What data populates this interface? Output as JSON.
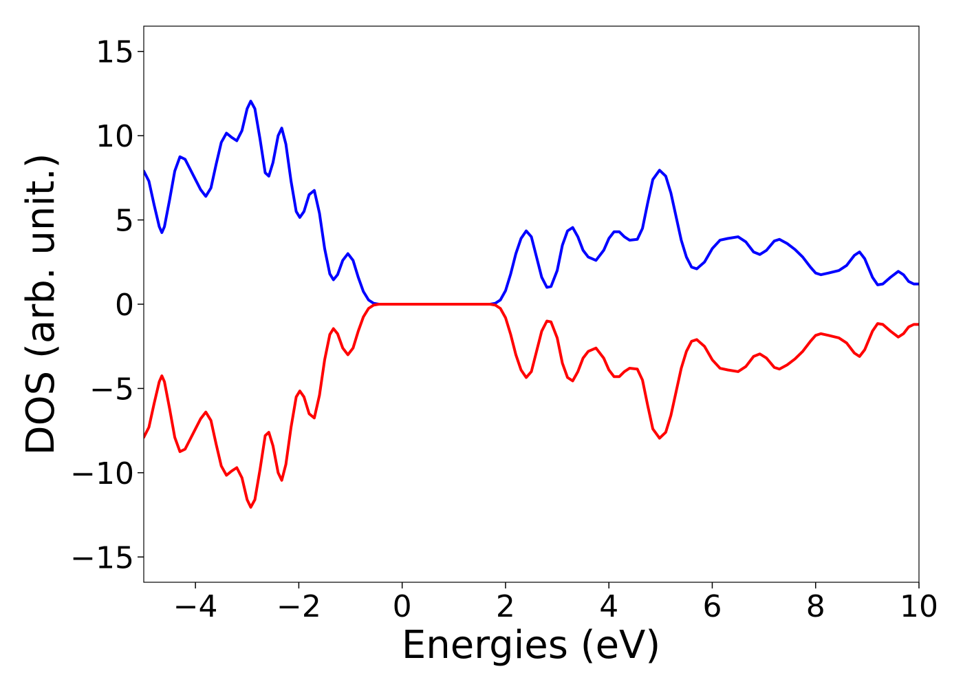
{
  "chart_data": {
    "type": "line",
    "title": "",
    "xlabel": "Energies (eV)",
    "ylabel": "DOS (arb. unit.)",
    "xlim": [
      -5,
      10
    ],
    "ylim": [
      -16.5,
      16.5
    ],
    "grid": false,
    "legend": "none",
    "x_ticks": [
      {
        "value": -4,
        "label": "−4"
      },
      {
        "value": -2,
        "label": "−2"
      },
      {
        "value": 0,
        "label": "0"
      },
      {
        "value": 2,
        "label": "2"
      },
      {
        "value": 4,
        "label": "4"
      },
      {
        "value": 6,
        "label": "6"
      },
      {
        "value": 8,
        "label": "8"
      },
      {
        "value": 10,
        "label": "10"
      }
    ],
    "y_ticks": [
      {
        "value": 15,
        "label": "15"
      },
      {
        "value": 10,
        "label": "10"
      },
      {
        "value": 5,
        "label": "5"
      },
      {
        "value": 0,
        "label": "0"
      },
      {
        "value": -5,
        "label": "−5"
      },
      {
        "value": -10,
        "label": "−10"
      },
      {
        "value": -15,
        "label": "−15"
      }
    ],
    "series": [
      {
        "color": "#0000ff",
        "points": [
          [
            -5.0,
            7.9
          ],
          [
            -4.9,
            7.3
          ],
          [
            -4.8,
            5.9
          ],
          [
            -4.7,
            4.6
          ],
          [
            -4.65,
            4.25
          ],
          [
            -4.6,
            4.6
          ],
          [
            -4.5,
            6.2
          ],
          [
            -4.4,
            7.9
          ],
          [
            -4.3,
            8.75
          ],
          [
            -4.2,
            8.6
          ],
          [
            -4.1,
            8.0
          ],
          [
            -4.0,
            7.4
          ],
          [
            -3.9,
            6.8
          ],
          [
            -3.8,
            6.4
          ],
          [
            -3.7,
            6.9
          ],
          [
            -3.6,
            8.3
          ],
          [
            -3.5,
            9.6
          ],
          [
            -3.4,
            10.15
          ],
          [
            -3.3,
            9.9
          ],
          [
            -3.2,
            9.7
          ],
          [
            -3.1,
            10.3
          ],
          [
            -3.0,
            11.6
          ],
          [
            -2.93,
            12.05
          ],
          [
            -2.85,
            11.6
          ],
          [
            -2.75,
            9.8
          ],
          [
            -2.65,
            7.8
          ],
          [
            -2.58,
            7.6
          ],
          [
            -2.5,
            8.4
          ],
          [
            -2.4,
            10.0
          ],
          [
            -2.33,
            10.45
          ],
          [
            -2.25,
            9.5
          ],
          [
            -2.15,
            7.3
          ],
          [
            -2.05,
            5.5
          ],
          [
            -1.98,
            5.15
          ],
          [
            -1.9,
            5.5
          ],
          [
            -1.8,
            6.5
          ],
          [
            -1.7,
            6.75
          ],
          [
            -1.6,
            5.4
          ],
          [
            -1.5,
            3.3
          ],
          [
            -1.4,
            1.8
          ],
          [
            -1.33,
            1.45
          ],
          [
            -1.25,
            1.75
          ],
          [
            -1.15,
            2.6
          ],
          [
            -1.05,
            3.0
          ],
          [
            -0.95,
            2.6
          ],
          [
            -0.85,
            1.6
          ],
          [
            -0.75,
            0.75
          ],
          [
            -0.65,
            0.25
          ],
          [
            -0.55,
            0.05
          ],
          [
            -0.45,
            0.0
          ],
          [
            0.0,
            0.0
          ],
          [
            1.0,
            0.0
          ],
          [
            1.7,
            0.0
          ],
          [
            1.8,
            0.05
          ],
          [
            1.9,
            0.25
          ],
          [
            2.0,
            0.8
          ],
          [
            2.1,
            1.8
          ],
          [
            2.2,
            3.0
          ],
          [
            2.3,
            3.9
          ],
          [
            2.4,
            4.35
          ],
          [
            2.5,
            4.0
          ],
          [
            2.6,
            2.8
          ],
          [
            2.7,
            1.6
          ],
          [
            2.8,
            1.0
          ],
          [
            2.88,
            1.05
          ],
          [
            3.0,
            2.0
          ],
          [
            3.1,
            3.5
          ],
          [
            3.2,
            4.35
          ],
          [
            3.3,
            4.55
          ],
          [
            3.4,
            4.0
          ],
          [
            3.5,
            3.2
          ],
          [
            3.6,
            2.8
          ],
          [
            3.75,
            2.6
          ],
          [
            3.9,
            3.2
          ],
          [
            4.0,
            3.9
          ],
          [
            4.1,
            4.3
          ],
          [
            4.2,
            4.3
          ],
          [
            4.3,
            4.0
          ],
          [
            4.4,
            3.8
          ],
          [
            4.55,
            3.85
          ],
          [
            4.65,
            4.5
          ],
          [
            4.75,
            6.0
          ],
          [
            4.85,
            7.4
          ],
          [
            4.98,
            7.95
          ],
          [
            5.1,
            7.6
          ],
          [
            5.2,
            6.6
          ],
          [
            5.3,
            5.2
          ],
          [
            5.4,
            3.8
          ],
          [
            5.5,
            2.8
          ],
          [
            5.6,
            2.2
          ],
          [
            5.7,
            2.1
          ],
          [
            5.85,
            2.5
          ],
          [
            6.0,
            3.3
          ],
          [
            6.15,
            3.8
          ],
          [
            6.3,
            3.9
          ],
          [
            6.5,
            4.0
          ],
          [
            6.65,
            3.7
          ],
          [
            6.8,
            3.1
          ],
          [
            6.92,
            2.95
          ],
          [
            7.05,
            3.2
          ],
          [
            7.2,
            3.75
          ],
          [
            7.3,
            3.85
          ],
          [
            7.45,
            3.6
          ],
          [
            7.6,
            3.25
          ],
          [
            7.75,
            2.8
          ],
          [
            7.9,
            2.2
          ],
          [
            8.0,
            1.85
          ],
          [
            8.1,
            1.75
          ],
          [
            8.25,
            1.85
          ],
          [
            8.45,
            2.0
          ],
          [
            8.6,
            2.3
          ],
          [
            8.75,
            2.9
          ],
          [
            8.85,
            3.1
          ],
          [
            8.95,
            2.7
          ],
          [
            9.1,
            1.6
          ],
          [
            9.2,
            1.15
          ],
          [
            9.3,
            1.2
          ],
          [
            9.45,
            1.6
          ],
          [
            9.6,
            1.95
          ],
          [
            9.7,
            1.75
          ],
          [
            9.8,
            1.35
          ],
          [
            9.9,
            1.2
          ],
          [
            10.0,
            1.2
          ]
        ]
      },
      {
        "color": "#ff0000",
        "points": [
          [
            -5.0,
            -7.9
          ],
          [
            -4.9,
            -7.3
          ],
          [
            -4.8,
            -5.9
          ],
          [
            -4.7,
            -4.6
          ],
          [
            -4.65,
            -4.25
          ],
          [
            -4.6,
            -4.6
          ],
          [
            -4.5,
            -6.2
          ],
          [
            -4.4,
            -7.9
          ],
          [
            -4.3,
            -8.75
          ],
          [
            -4.2,
            -8.6
          ],
          [
            -4.1,
            -8.0
          ],
          [
            -4.0,
            -7.4
          ],
          [
            -3.9,
            -6.8
          ],
          [
            -3.8,
            -6.4
          ],
          [
            -3.7,
            -6.9
          ],
          [
            -3.6,
            -8.3
          ],
          [
            -3.5,
            -9.6
          ],
          [
            -3.4,
            -10.15
          ],
          [
            -3.3,
            -9.9
          ],
          [
            -3.2,
            -9.7
          ],
          [
            -3.1,
            -10.3
          ],
          [
            -3.0,
            -11.6
          ],
          [
            -2.93,
            -12.05
          ],
          [
            -2.85,
            -11.6
          ],
          [
            -2.75,
            -9.8
          ],
          [
            -2.65,
            -7.8
          ],
          [
            -2.58,
            -7.6
          ],
          [
            -2.5,
            -8.4
          ],
          [
            -2.4,
            -10.0
          ],
          [
            -2.33,
            -10.45
          ],
          [
            -2.25,
            -9.5
          ],
          [
            -2.15,
            -7.3
          ],
          [
            -2.05,
            -5.5
          ],
          [
            -1.98,
            -5.15
          ],
          [
            -1.9,
            -5.5
          ],
          [
            -1.8,
            -6.5
          ],
          [
            -1.7,
            -6.75
          ],
          [
            -1.6,
            -5.4
          ],
          [
            -1.5,
            -3.3
          ],
          [
            -1.4,
            -1.8
          ],
          [
            -1.33,
            -1.45
          ],
          [
            -1.25,
            -1.75
          ],
          [
            -1.15,
            -2.6
          ],
          [
            -1.05,
            -3.0
          ],
          [
            -0.95,
            -2.6
          ],
          [
            -0.85,
            -1.6
          ],
          [
            -0.75,
            -0.75
          ],
          [
            -0.65,
            -0.25
          ],
          [
            -0.55,
            -0.05
          ],
          [
            -0.45,
            0.0
          ],
          [
            0.0,
            0.0
          ],
          [
            1.0,
            0.0
          ],
          [
            1.7,
            0.0
          ],
          [
            1.8,
            -0.05
          ],
          [
            1.9,
            -0.25
          ],
          [
            2.0,
            -0.8
          ],
          [
            2.1,
            -1.8
          ],
          [
            2.2,
            -3.0
          ],
          [
            2.3,
            -3.9
          ],
          [
            2.4,
            -4.35
          ],
          [
            2.5,
            -4.0
          ],
          [
            2.6,
            -2.8
          ],
          [
            2.7,
            -1.6
          ],
          [
            2.8,
            -1.0
          ],
          [
            2.88,
            -1.05
          ],
          [
            3.0,
            -2.0
          ],
          [
            3.1,
            -3.5
          ],
          [
            3.2,
            -4.35
          ],
          [
            3.3,
            -4.55
          ],
          [
            3.4,
            -4.0
          ],
          [
            3.5,
            -3.2
          ],
          [
            3.6,
            -2.8
          ],
          [
            3.75,
            -2.6
          ],
          [
            3.9,
            -3.2
          ],
          [
            4.0,
            -3.9
          ],
          [
            4.1,
            -4.3
          ],
          [
            4.2,
            -4.3
          ],
          [
            4.3,
            -4.0
          ],
          [
            4.4,
            -3.8
          ],
          [
            4.55,
            -3.85
          ],
          [
            4.65,
            -4.5
          ],
          [
            4.75,
            -6.0
          ],
          [
            4.85,
            -7.4
          ],
          [
            4.98,
            -7.95
          ],
          [
            5.1,
            -7.6
          ],
          [
            5.2,
            -6.6
          ],
          [
            5.3,
            -5.2
          ],
          [
            5.4,
            -3.8
          ],
          [
            5.5,
            -2.8
          ],
          [
            5.6,
            -2.2
          ],
          [
            5.7,
            -2.1
          ],
          [
            5.85,
            -2.5
          ],
          [
            6.0,
            -3.3
          ],
          [
            6.15,
            -3.8
          ],
          [
            6.3,
            -3.9
          ],
          [
            6.5,
            -4.0
          ],
          [
            6.65,
            -3.7
          ],
          [
            6.8,
            -3.1
          ],
          [
            6.92,
            -2.95
          ],
          [
            7.05,
            -3.2
          ],
          [
            7.2,
            -3.75
          ],
          [
            7.3,
            -3.85
          ],
          [
            7.45,
            -3.6
          ],
          [
            7.6,
            -3.25
          ],
          [
            7.75,
            -2.8
          ],
          [
            7.9,
            -2.2
          ],
          [
            8.0,
            -1.85
          ],
          [
            8.1,
            -1.75
          ],
          [
            8.25,
            -1.85
          ],
          [
            8.45,
            -2.0
          ],
          [
            8.6,
            -2.3
          ],
          [
            8.75,
            -2.9
          ],
          [
            8.85,
            -3.1
          ],
          [
            8.95,
            -2.7
          ],
          [
            9.1,
            -1.6
          ],
          [
            9.2,
            -1.15
          ],
          [
            9.3,
            -1.2
          ],
          [
            9.45,
            -1.6
          ],
          [
            9.6,
            -1.95
          ],
          [
            9.7,
            -1.75
          ],
          [
            9.8,
            -1.35
          ],
          [
            9.9,
            -1.2
          ],
          [
            10.0,
            -1.2
          ]
        ]
      }
    ]
  }
}
